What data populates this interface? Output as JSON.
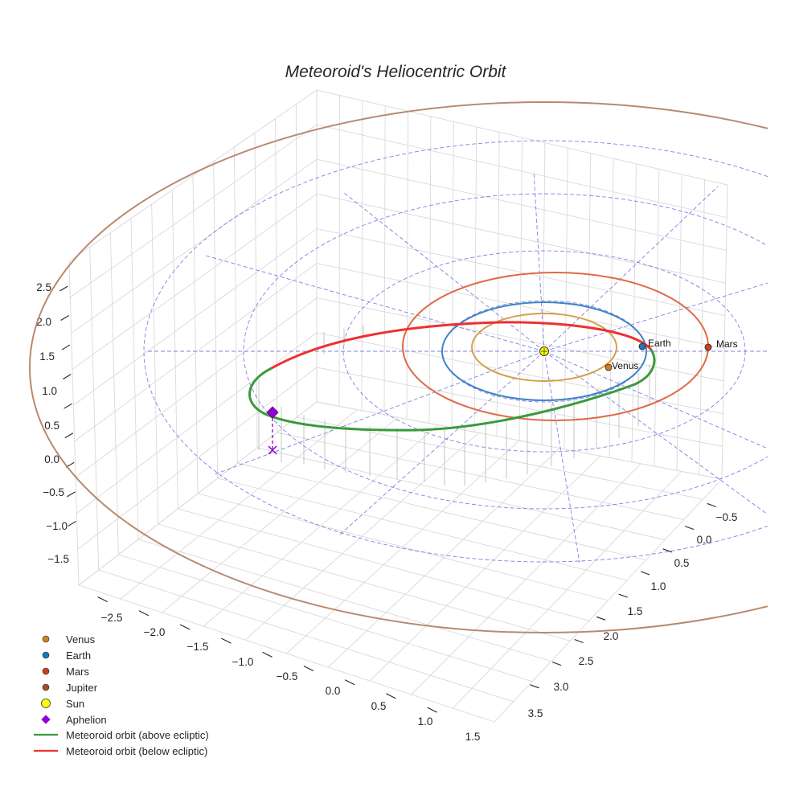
{
  "chart_data": {
    "type": "line3d",
    "title": "Meteoroid's Heliocentric Orbit",
    "axes": {
      "x_ticks": [
        "−2.5",
        "−2.0",
        "−1.5",
        "−1.0",
        "−0.5",
        "0.0",
        "0.5",
        "1.0",
        "1.5"
      ],
      "y_ticks": [
        "−0.5",
        "0.0",
        "0.5",
        "1.0",
        "1.5",
        "2.0",
        "2.5",
        "3.0",
        "3.5"
      ],
      "z_ticks": [
        "2.5",
        "2.0",
        "1.5",
        "1.0",
        "0.5",
        "0.0",
        "−0.5",
        "−1.0",
        "−1.5"
      ],
      "grid": true
    },
    "planets": [
      {
        "name": "Venus",
        "orbit_radius_au": 0.72,
        "color": "#d4a04a",
        "marker_color": "#d2801e"
      },
      {
        "name": "Earth",
        "orbit_radius_au": 1.0,
        "color": "#3d84c6",
        "marker_color": "#1f77b4"
      },
      {
        "name": "Mars",
        "orbit_radius_au": 1.52,
        "color": "#e06a46",
        "marker_color": "#c8401c"
      },
      {
        "name": "Jupiter",
        "orbit_radius_au": 5.2,
        "color": "#b88a6e",
        "marker_color": "#a0522d"
      }
    ],
    "sun": {
      "name": "Sun",
      "color": "#ffff00"
    },
    "aphelion": {
      "name": "Aphelion",
      "color": "#9400d3"
    },
    "meteoroid": {
      "above_label": "Meteoroid orbit (above ecliptic)",
      "below_label": "Meteoroid orbit (below ecliptic)",
      "above_color": "#3a9a3a",
      "below_color": "#ee3030"
    },
    "ecliptic_grid": {
      "rings_au": [
        1,
        2,
        3,
        4
      ],
      "color": "#5555dd"
    },
    "legend": {
      "position": "lower-left",
      "entries": [
        "Venus",
        "Earth",
        "Mars",
        "Jupiter",
        "Sun",
        "Aphelion",
        "Meteoroid orbit (above ecliptic)",
        "Meteoroid orbit (below ecliptic)"
      ]
    }
  }
}
